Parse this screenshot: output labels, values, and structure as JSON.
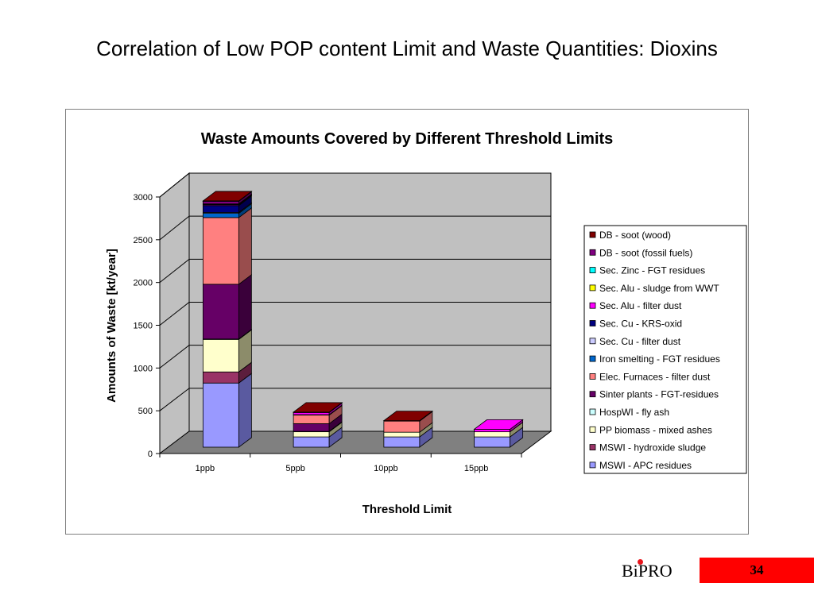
{
  "slide": {
    "title": "Correlation of Low POP content Limit and Waste Quantities: Dioxins",
    "logo_text": "BiPRO",
    "page_number": "34"
  },
  "chart_data": {
    "type": "bar",
    "stacked": true,
    "three_d": true,
    "title": "Waste Amounts Covered by Different Threshold Limits",
    "xlabel": "Threshold Limit",
    "ylabel": "Amounts of Waste [kt/year]",
    "ylim": [
      0,
      3000
    ],
    "yticks": [
      0,
      500,
      1000,
      1500,
      2000,
      2500,
      3000
    ],
    "categories": [
      "1ppb",
      "5ppb",
      "10ppb",
      "15ppb"
    ],
    "legend_position": "right",
    "series": [
      {
        "name": "MSWI - APC residues",
        "color": "#9999ff",
        "side": "#5a5aa0",
        "values": [
          750,
          120,
          120,
          120
        ]
      },
      {
        "name": "MSWI - hydroxide sludge",
        "color": "#993366",
        "side": "#5c1e3d",
        "values": [
          130,
          0,
          0,
          0
        ]
      },
      {
        "name": "PP biomass - mixed ashes",
        "color": "#ffffcc",
        "side": "#8c8c6a",
        "values": [
          380,
          60,
          55,
          60
        ]
      },
      {
        "name": "HospWI - fly ash",
        "color": "#ccffff",
        "side": "#7a9999",
        "values": [
          5,
          5,
          0,
          0
        ]
      },
      {
        "name": "Sinter plants - FGT-residues",
        "color": "#660066",
        "side": "#3a003a",
        "values": [
          640,
          90,
          0,
          0
        ]
      },
      {
        "name": "Elec. Furnaces - filter dust",
        "color": "#ff8080",
        "side": "#994d4d",
        "values": [
          780,
          100,
          130,
          0
        ]
      },
      {
        "name": "Iron smelting - FGT residues",
        "color": "#0066cc",
        "side": "#003d7a",
        "values": [
          50,
          0,
          0,
          0
        ]
      },
      {
        "name": "Sec. Cu - filter dust",
        "color": "#ccccff",
        "side": "#7a7a99",
        "values": [
          10,
          0,
          0,
          0
        ]
      },
      {
        "name": "Sec. Cu - KRS-oxid",
        "color": "#000080",
        "side": "#00004d",
        "values": [
          80,
          5,
          0,
          0
        ]
      },
      {
        "name": "Sec. Alu - filter dust",
        "color": "#ff00ff",
        "side": "#990099",
        "values": [
          10,
          25,
          0,
          30
        ]
      },
      {
        "name": "Sec. Alu - sludge from WWT",
        "color": "#ffff00",
        "side": "#999900",
        "values": [
          5,
          0,
          0,
          0
        ]
      },
      {
        "name": "Sec. Zinc - FGT residues",
        "color": "#00ffff",
        "side": "#009999",
        "values": [
          5,
          0,
          0,
          0
        ]
      },
      {
        "name": "DB - soot (fossil fuels)",
        "color": "#800080",
        "side": "#4d004d",
        "values": [
          30,
          0,
          0,
          0
        ]
      },
      {
        "name": "DB - soot (wood)",
        "color": "#800000",
        "side": "#4d0000",
        "values": [
          5,
          5,
          5,
          0
        ]
      }
    ]
  }
}
